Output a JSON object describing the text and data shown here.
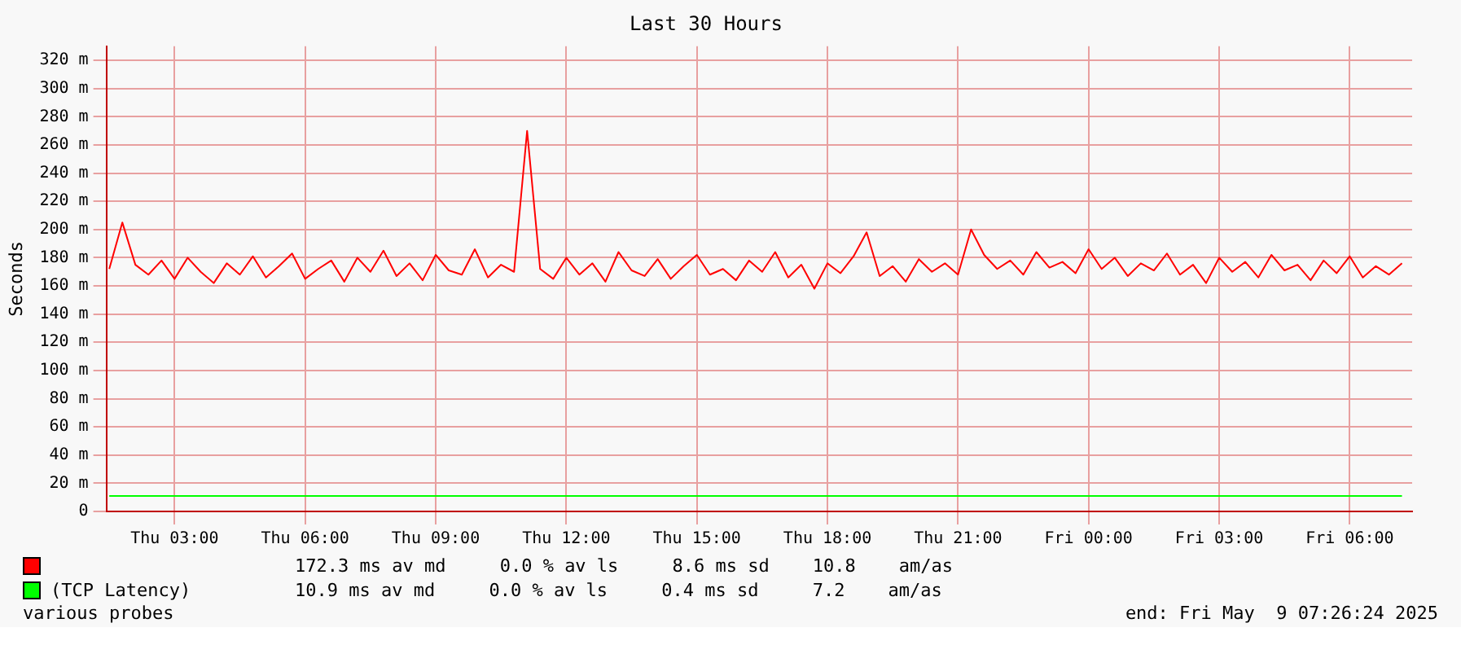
{
  "chart_data": {
    "type": "line",
    "title": "Last 30 Hours",
    "ylabel": "Seconds",
    "xlim": [
      "2025-05-08T01:26",
      "2025-05-09T07:26"
    ],
    "xticks": [
      {
        "value": "2025-05-08T03:00",
        "label": "Thu 03:00"
      },
      {
        "value": "2025-05-08T06:00",
        "label": "Thu 06:00"
      },
      {
        "value": "2025-05-08T09:00",
        "label": "Thu 09:00"
      },
      {
        "value": "2025-05-08T12:00",
        "label": "Thu 12:00"
      },
      {
        "value": "2025-05-08T15:00",
        "label": "Thu 15:00"
      },
      {
        "value": "2025-05-08T18:00",
        "label": "Thu 18:00"
      },
      {
        "value": "2025-05-08T21:00",
        "label": "Thu 21:00"
      },
      {
        "value": "2025-05-09T00:00",
        "label": "Fri 00:00"
      },
      {
        "value": "2025-05-09T03:00",
        "label": "Fri 03:00"
      },
      {
        "value": "2025-05-09T06:00",
        "label": "Fri 06:00"
      }
    ],
    "ylim": [
      0,
      330
    ],
    "yticks": [
      0,
      {
        "value": 20,
        "label": "20 m"
      },
      {
        "value": 40,
        "label": "40 m"
      },
      {
        "value": 60,
        "label": "60 m"
      },
      {
        "value": 80,
        "label": "80 m"
      },
      {
        "value": 100,
        "label": "100 m"
      },
      {
        "value": 120,
        "label": "120 m"
      },
      {
        "value": 140,
        "label": "140 m"
      },
      {
        "value": 160,
        "label": "160 m"
      },
      {
        "value": 180,
        "label": "180 m"
      },
      {
        "value": 200,
        "label": "200 m"
      },
      {
        "value": 220,
        "label": "220 m"
      },
      {
        "value": 240,
        "label": "240 m"
      },
      {
        "value": 260,
        "label": "260 m"
      },
      {
        "value": 280,
        "label": "280 m"
      },
      {
        "value": 300,
        "label": "300 m"
      },
      {
        "value": 320,
        "label": "320 m"
      }
    ],
    "grid": true,
    "legend": "bottom",
    "marker": "none",
    "line_style": "solid",
    "series": [
      {
        "color": "#ff0000",
        "x": [
          "2025-05-08T01:30",
          "2025-05-08T01:48",
          "2025-05-08T02:06",
          "2025-05-08T02:24",
          "2025-05-08T02:42",
          "2025-05-08T03:00",
          "2025-05-08T03:18",
          "2025-05-08T03:36",
          "2025-05-08T03:54",
          "2025-05-08T04:12",
          "2025-05-08T04:30",
          "2025-05-08T04:48",
          "2025-05-08T05:06",
          "2025-05-08T05:24",
          "2025-05-08T05:42",
          "2025-05-08T06:00",
          "2025-05-08T06:18",
          "2025-05-08T06:36",
          "2025-05-08T06:54",
          "2025-05-08T07:12",
          "2025-05-08T07:30",
          "2025-05-08T07:48",
          "2025-05-08T08:06",
          "2025-05-08T08:24",
          "2025-05-08T08:42",
          "2025-05-08T09:00",
          "2025-05-08T09:18",
          "2025-05-08T09:36",
          "2025-05-08T09:54",
          "2025-05-08T10:12",
          "2025-05-08T10:30",
          "2025-05-08T10:48",
          "2025-05-08T11:06",
          "2025-05-08T11:24",
          "2025-05-08T11:42",
          "2025-05-08T12:00",
          "2025-05-08T12:18",
          "2025-05-08T12:36",
          "2025-05-08T12:54",
          "2025-05-08T13:12",
          "2025-05-08T13:30",
          "2025-05-08T13:48",
          "2025-05-08T14:06",
          "2025-05-08T14:24",
          "2025-05-08T14:42",
          "2025-05-08T15:00",
          "2025-05-08T15:18",
          "2025-05-08T15:36",
          "2025-05-08T15:54",
          "2025-05-08T16:12",
          "2025-05-08T16:30",
          "2025-05-08T16:48",
          "2025-05-08T17:06",
          "2025-05-08T17:24",
          "2025-05-08T17:42",
          "2025-05-08T18:00",
          "2025-05-08T18:18",
          "2025-05-08T18:36",
          "2025-05-08T18:54",
          "2025-05-08T19:12",
          "2025-05-08T19:30",
          "2025-05-08T19:48",
          "2025-05-08T20:06",
          "2025-05-08T20:24",
          "2025-05-08T20:42",
          "2025-05-08T21:00",
          "2025-05-08T21:18",
          "2025-05-08T21:36",
          "2025-05-08T21:54",
          "2025-05-08T22:12",
          "2025-05-08T22:30",
          "2025-05-08T22:48",
          "2025-05-08T23:06",
          "2025-05-08T23:24",
          "2025-05-08T23:42",
          "2025-05-09T00:00",
          "2025-05-09T00:18",
          "2025-05-09T00:36",
          "2025-05-09T00:54",
          "2025-05-09T01:12",
          "2025-05-09T01:30",
          "2025-05-09T01:48",
          "2025-05-09T02:06",
          "2025-05-09T02:24",
          "2025-05-09T02:42",
          "2025-05-09T03:00",
          "2025-05-09T03:18",
          "2025-05-09T03:36",
          "2025-05-09T03:54",
          "2025-05-09T04:12",
          "2025-05-09T04:30",
          "2025-05-09T04:48",
          "2025-05-09T05:06",
          "2025-05-09T05:24",
          "2025-05-09T05:42",
          "2025-05-09T06:00",
          "2025-05-09T06:18",
          "2025-05-09T06:36",
          "2025-05-09T06:54",
          "2025-05-09T07:12"
        ],
        "values": [
          172,
          205,
          175,
          168,
          178,
          165,
          180,
          170,
          162,
          176,
          168,
          181,
          166,
          174,
          183,
          165,
          172,
          178,
          163,
          180,
          170,
          185,
          167,
          176,
          164,
          182,
          171,
          168,
          186,
          166,
          175,
          170,
          270,
          172,
          165,
          180,
          168,
          176,
          163,
          184,
          171,
          167,
          179,
          165,
          174,
          182,
          168,
          172,
          164,
          178,
          170,
          184,
          166,
          175,
          158,
          176,
          169,
          181,
          198,
          167,
          174,
          163,
          179,
          170,
          176,
          168,
          200,
          182,
          172,
          178,
          168,
          184,
          173,
          177,
          169,
          186,
          172,
          180,
          167,
          176,
          171,
          183,
          168,
          175,
          162,
          180,
          170,
          177,
          166,
          182,
          171,
          175,
          164,
          178,
          169,
          181,
          166,
          174,
          168,
          176
        ]
      },
      {
        "name": "(TCP Latency)",
        "color": "#00ff00",
        "x": [
          "2025-05-08T01:30",
          "2025-05-08T12:00",
          "2025-05-08T22:00",
          "2025-05-09T07:12"
        ],
        "values": [
          11,
          11,
          11,
          11
        ]
      }
    ],
    "annotations": [
      "172.3 ms av md     0.0 % av ls     8.6 ms sd    10.8    am/as",
      "10.9 ms av md     0.0 % av ls     0.4 ms sd     7.2    am/as",
      "various probes",
      "end: Fri May  9 07:26:24 2025"
    ]
  }
}
